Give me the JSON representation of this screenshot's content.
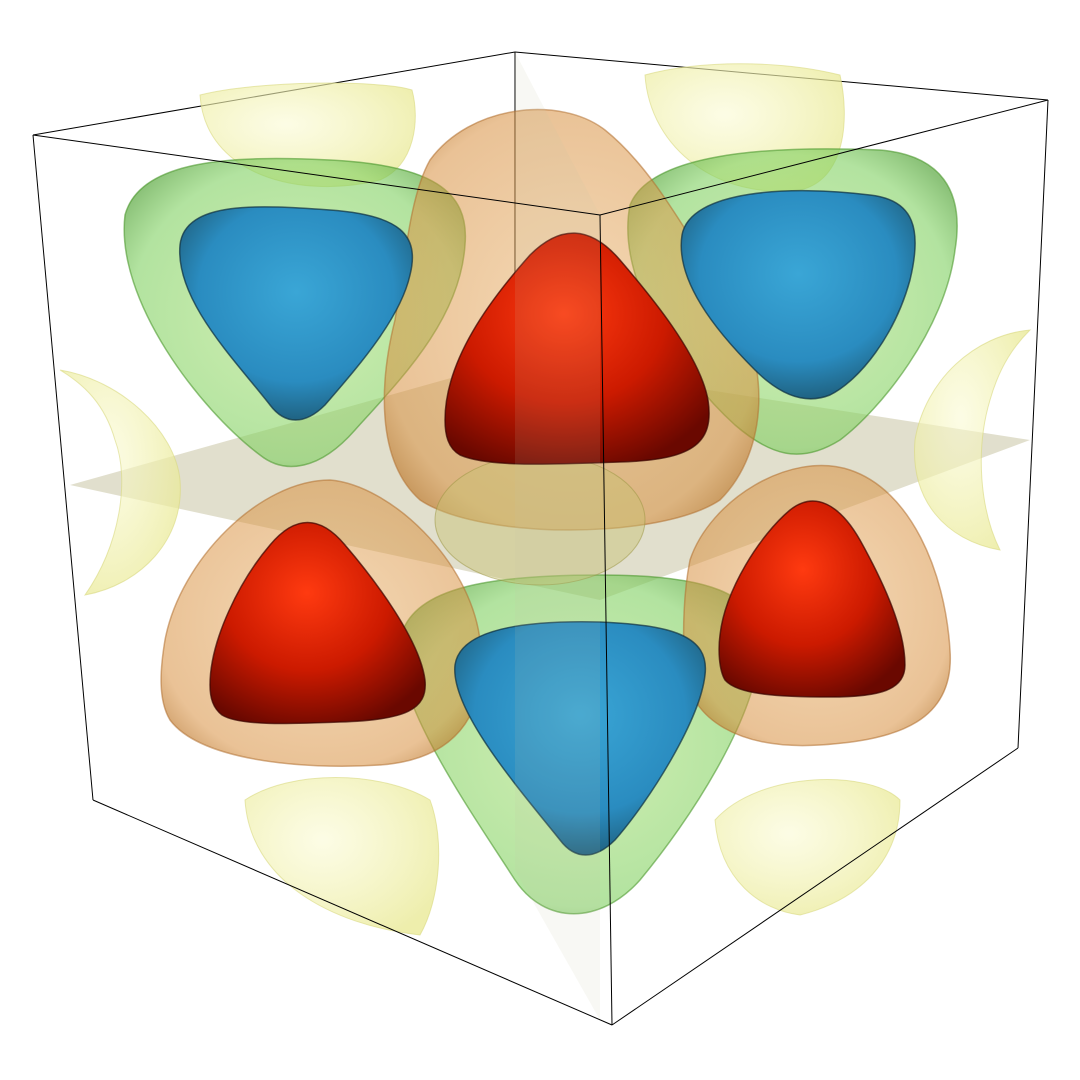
{
  "scene": {
    "background": "#ffffff",
    "colors": {
      "box_edge": "#000000",
      "red_core": "#cc1a00",
      "red_highlight": "#ff3a10",
      "red_shell": "#e08a3a",
      "blue_core": "#2a8cc0",
      "green_shell": "#7fd060",
      "yellow_shell": "#f0f0a0",
      "plane": "#c8c4a4"
    },
    "objects": [
      {
        "name": "red-lobe-top-center",
        "kind": "red"
      },
      {
        "name": "red-lobe-left",
        "kind": "red"
      },
      {
        "name": "red-lobe-right",
        "kind": "red"
      },
      {
        "name": "blue-lobe-top-left",
        "kind": "blue"
      },
      {
        "name": "blue-lobe-top-right",
        "kind": "blue"
      },
      {
        "name": "blue-lobe-bottom-center",
        "kind": "blue"
      }
    ]
  }
}
